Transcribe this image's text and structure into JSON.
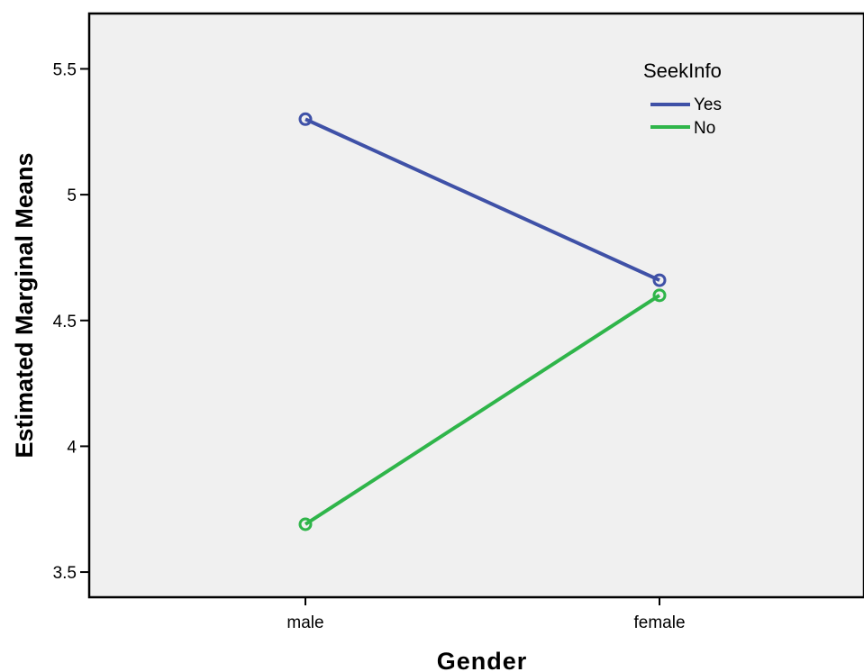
{
  "chart_data": {
    "type": "line",
    "title": "",
    "xlabel": "Gender",
    "ylabel": "Estimated Marginal Means",
    "categories": [
      "male",
      "female"
    ],
    "yticks": [
      "3.5",
      "4",
      "4.5",
      "5",
      "5.5"
    ],
    "ylim": [
      3.4,
      5.72
    ],
    "grid": false,
    "legend": {
      "title": "SeekInfo",
      "placement": "top-right",
      "entries": [
        "Yes",
        "No"
      ]
    },
    "series": [
      {
        "name": "Yes",
        "color": "#3f51a7",
        "values": [
          5.3,
          4.66
        ]
      },
      {
        "name": "No",
        "color": "#2fb54a",
        "values": [
          3.69,
          4.6
        ]
      }
    ],
    "plot_background": "#f0f0f0"
  }
}
